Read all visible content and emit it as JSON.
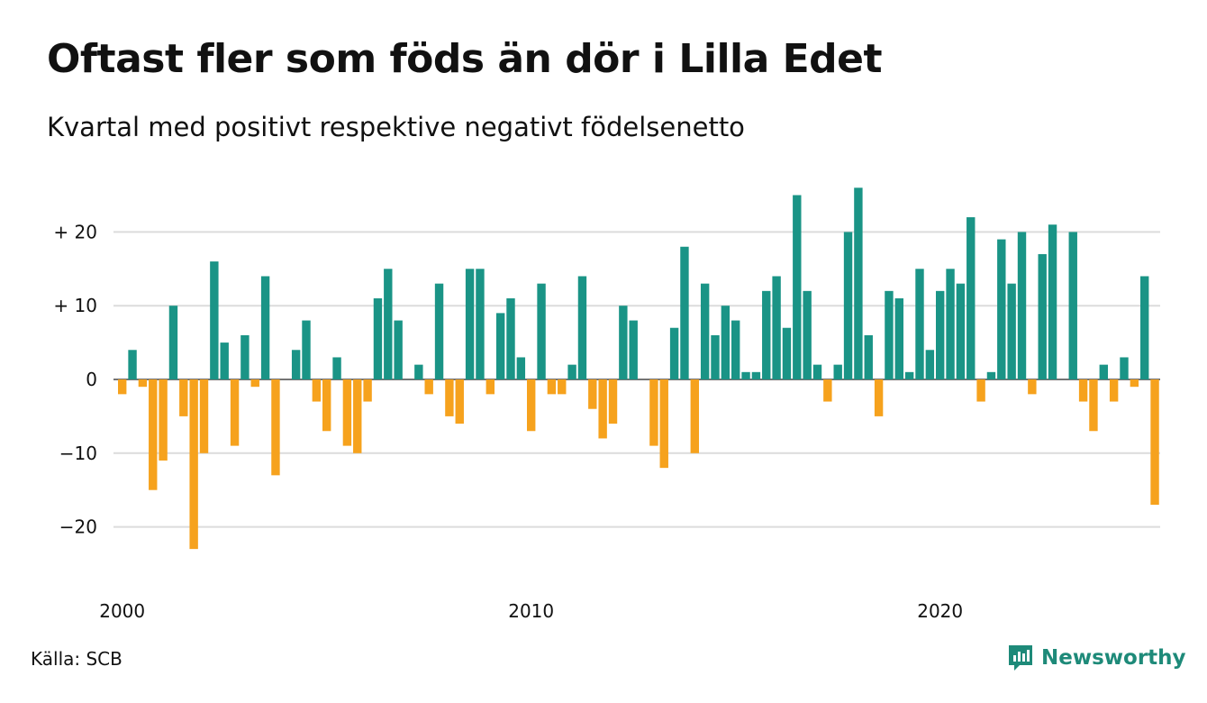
{
  "title": "Oftast fler som föds än dör i Lilla Edet",
  "subtitle": "Kvartal med positivt respektive negativt födelsenetto",
  "source": "Källa: SCB",
  "brand": "Newsworthy",
  "colors": {
    "positive": "#1a9486",
    "negative": "#f6a21d",
    "grid": "#dcdcdc",
    "brand": "#1e8a79"
  },
  "chart_data": {
    "type": "bar",
    "x_start": "2000 Q1",
    "y_ticks": [
      {
        "value": 20,
        "label": "+ 20"
      },
      {
        "value": 10,
        "label": "+ 10"
      },
      {
        "value": 0,
        "label": "0"
      },
      {
        "value": -10,
        "label": "−10"
      },
      {
        "value": -20,
        "label": "−20"
      }
    ],
    "x_ticks": [
      {
        "index": 0,
        "label": "2000"
      },
      {
        "index": 40,
        "label": "2010"
      },
      {
        "index": 80,
        "label": "2020"
      }
    ],
    "ylim": [
      -25,
      30
    ],
    "grid": true,
    "legend": "none",
    "values": [
      -2,
      4,
      -1,
      -15,
      -11,
      10,
      -5,
      -23,
      -10,
      16,
      5,
      -9,
      6,
      -1,
      14,
      -13,
      0,
      4,
      8,
      -3,
      -7,
      3,
      -9,
      -10,
      -3,
      11,
      15,
      8,
      0,
      2,
      -2,
      13,
      -5,
      -6,
      15,
      15,
      -2,
      9,
      11,
      3,
      -7,
      13,
      -2,
      -2,
      2,
      14,
      -4,
      -8,
      -6,
      10,
      8,
      0,
      -9,
      -12,
      7,
      18,
      -10,
      13,
      6,
      10,
      8,
      1,
      1,
      12,
      14,
      7,
      25,
      12,
      2,
      -3,
      2,
      20,
      26,
      6,
      -5,
      12,
      11,
      1,
      15,
      4,
      12,
      15,
      13,
      22,
      -3,
      1,
      19,
      13,
      20,
      -2,
      17,
      21,
      0,
      20,
      -3,
      -7,
      2,
      -3,
      3,
      -1,
      14,
      -17
    ]
  }
}
